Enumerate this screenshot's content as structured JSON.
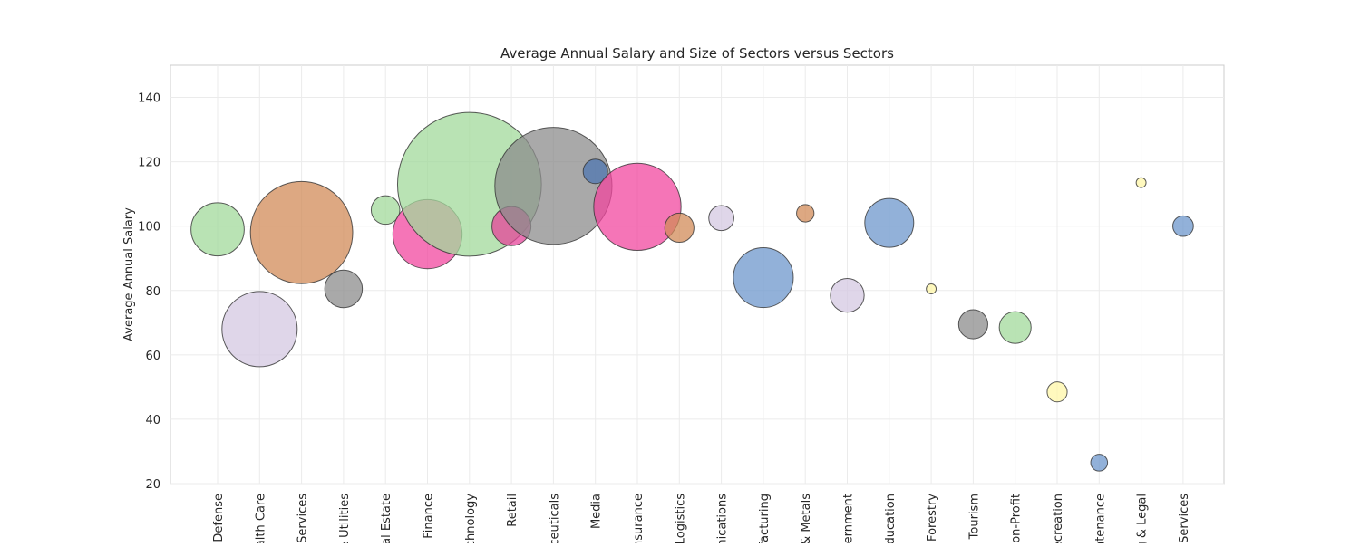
{
  "chart_data": {
    "type": "scatter",
    "title": "Average Annual Salary and Size of Sectors versus Sectors",
    "xlabel": "",
    "ylabel": "Average Annual Salary",
    "ylim": [
      20,
      150
    ],
    "yticks": [
      20,
      40,
      60,
      80,
      100,
      120,
      140
    ],
    "grid": true,
    "legend": "none",
    "categories": [
      "Defense",
      "Health Care",
      "Services",
      "Energy & Utilities",
      "Real Estate",
      "Finance",
      "Technology",
      "Retail",
      "Pharmaceuticals",
      "Media",
      "Insurance",
      "Logistics",
      "Telecommunications",
      "Manufacturing",
      "Mining & Metals",
      "Government",
      "Education",
      "Forestry",
      "Travel & Tourism",
      "Non-Profit",
      "Recreation",
      "Maintenance",
      "Consulting & Legal",
      "Services"
    ],
    "tick_labels": [
      "Defense",
      "alth Care",
      "Services",
      "& Utilities",
      "al Estate",
      "Finance",
      "chnology",
      "Retail",
      "ceuticals",
      "Media",
      "nsurance",
      "Logistics",
      "nications",
      "facturing",
      "& Metals",
      "vernment",
      "ducation",
      "Forestry",
      "& Tourism",
      "on-Profit",
      "ecreation",
      "ntenance",
      "g & Legal",
      "Services"
    ],
    "series": [
      {
        "values": [
          99,
          68,
          98,
          80.5,
          105,
          97.5,
          113,
          100,
          112.5,
          117,
          106,
          99.5,
          102.5,
          84,
          104,
          78.5,
          101,
          80.5,
          69.5,
          68.5,
          48.5,
          26.5,
          113.5,
          100
        ],
        "sizes": [
          2.6,
          5.2,
          9.6,
          1.3,
          0.75,
          4.4,
          19.0,
          1.4,
          12.6,
          0.55,
          7.0,
          0.78,
          0.58,
          3.3,
          0.28,
          1.05,
          2.2,
          0.09,
          0.78,
          0.93,
          0.37,
          0.26,
          0.09,
          0.39
        ],
        "colors": [
          "#a1d99b",
          "#d4c8e2",
          "#d18b58",
          "#8c8c8c",
          "#a1d99b",
          "#f2479f",
          "#a1d99b",
          "#e6449a",
          "#8c8c8c",
          "#4f77b2",
          "#f2479f",
          "#d18b58",
          "#d4c8e2",
          "#6e97cc",
          "#d18b58",
          "#d4c8e2",
          "#6e97cc",
          "#fff7a8",
          "#8c8c8c",
          "#a1d99b",
          "#fff7a8",
          "#6e97cc",
          "#fff7a8",
          "#6e97cc"
        ]
      }
    ]
  }
}
